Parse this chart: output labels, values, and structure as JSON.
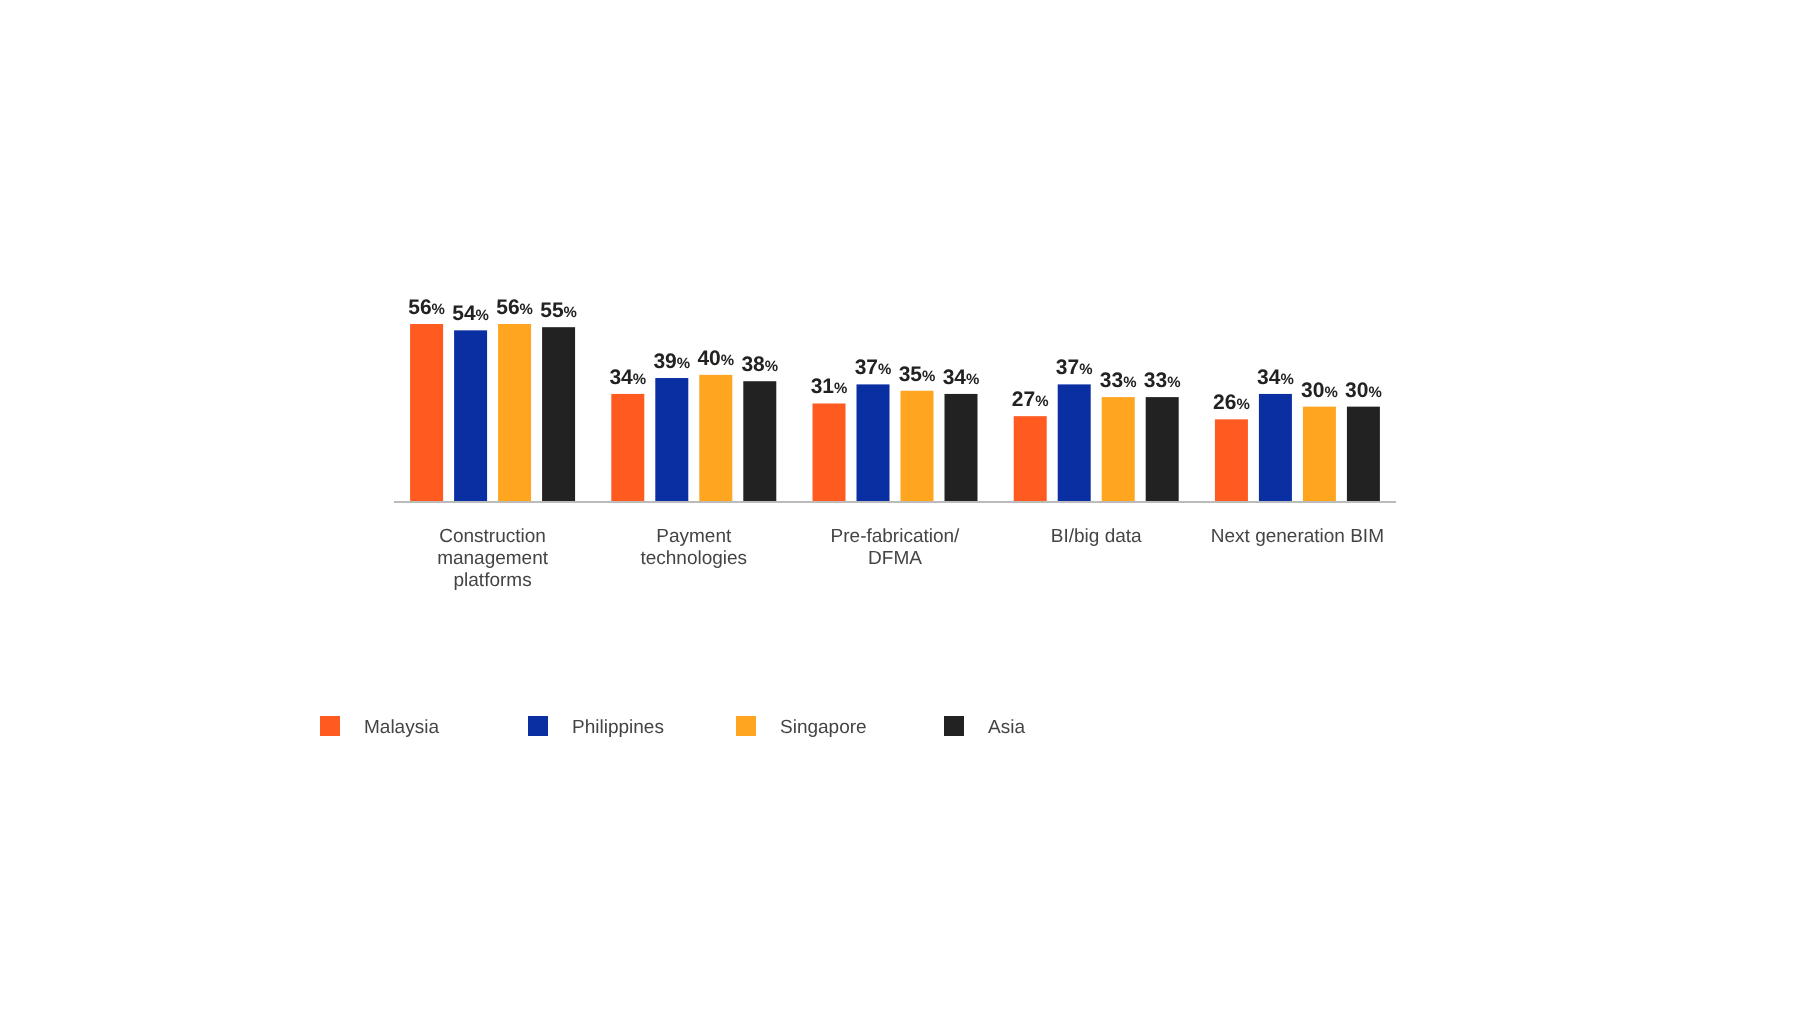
{
  "chart_data": {
    "type": "bar",
    "categories": [
      "Construction management platforms",
      "Payment technologies",
      "Pre-fabrication/ DFMA",
      "BI/big data",
      "Next generation BIM"
    ],
    "series": [
      {
        "name": "Malaysia",
        "color": "#ff5a1f",
        "values": [
          56,
          34,
          31,
          27,
          26
        ],
        "value_labels": [
          "56%",
          "34%",
          "31%",
          "27%",
          "26%"
        ]
      },
      {
        "name": "Philippines",
        "color": "#0a2fa3",
        "values": [
          54,
          39,
          37,
          37,
          34
        ],
        "value_labels": [
          "54%",
          "39%",
          "37%",
          "37%",
          "34%"
        ]
      },
      {
        "name": "Singapore",
        "color": "#ffa51f",
        "values": [
          56,
          40,
          35,
          33,
          30
        ],
        "value_labels": [
          "56%",
          "40%",
          "35%",
          "33%",
          "30%"
        ]
      },
      {
        "name": "Asia",
        "color": "#222222",
        "values": [
          55,
          38,
          34,
          33,
          30
        ],
        "value_labels": [
          "55%",
          "38%",
          "34%",
          "33%",
          "30%"
        ]
      }
    ],
    "legend": "bottom"
  }
}
